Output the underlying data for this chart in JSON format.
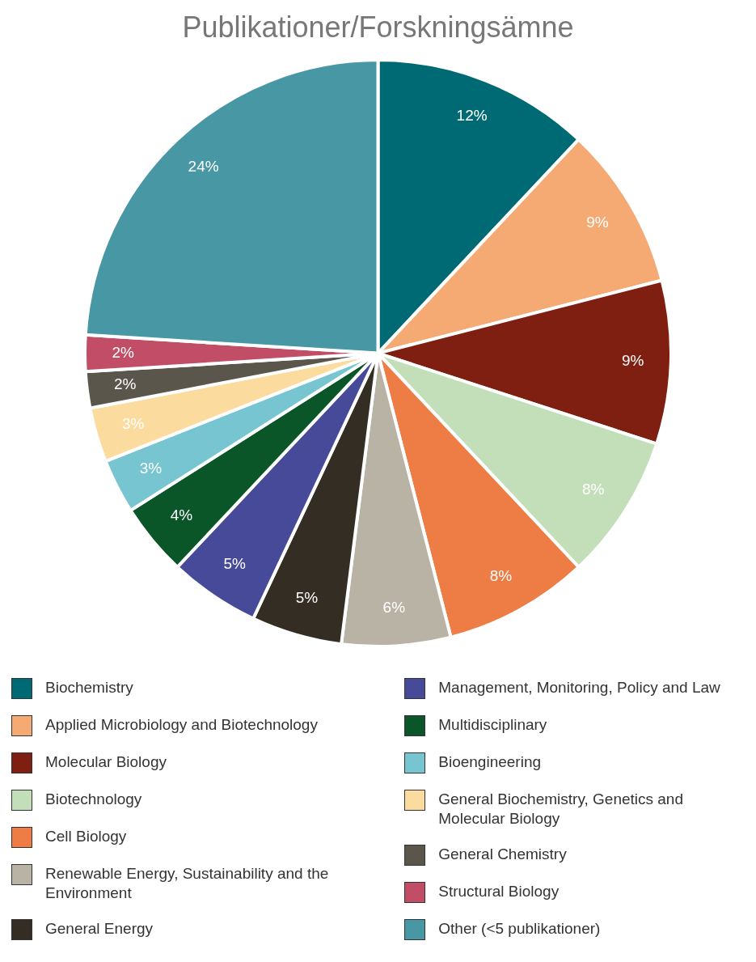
{
  "chart_data": {
    "type": "pie",
    "title": "Publikationer/Forskningsämne",
    "categories": [
      "Biochemistry",
      "Applied Microbiology and Biotechnology",
      "Molecular Biology",
      "Biotechnology",
      "Cell Biology",
      "Renewable Energy, Sustainability and the Environment",
      "General Energy",
      "Management, Monitoring, Policy and Law",
      "Multidisciplinary",
      "Bioengineering",
      "General Biochemistry, Genetics and Molecular Biology",
      "General Chemistry",
      "Structural Biology",
      "Other (<5 publikationer)"
    ],
    "values": [
      12,
      9,
      9,
      8,
      8,
      6,
      5,
      5,
      4,
      3,
      3,
      2,
      2,
      24
    ],
    "colors": [
      "#006a74",
      "#f4aa72",
      "#7f1f12",
      "#c3dfba",
      "#ee7c45",
      "#b9b3a6",
      "#342d24",
      "#464a99",
      "#0b5628",
      "#78c5d2",
      "#fcdb9f",
      "#5b564b",
      "#c14e66",
      "#4897a4"
    ],
    "value_labels": [
      "12%",
      "9%",
      "9%",
      "8%",
      "8%",
      "6%",
      "5%",
      "5%",
      "4%",
      "3%",
      "3%",
      "2%",
      "2%",
      "24%"
    ],
    "legend": "bottom"
  }
}
